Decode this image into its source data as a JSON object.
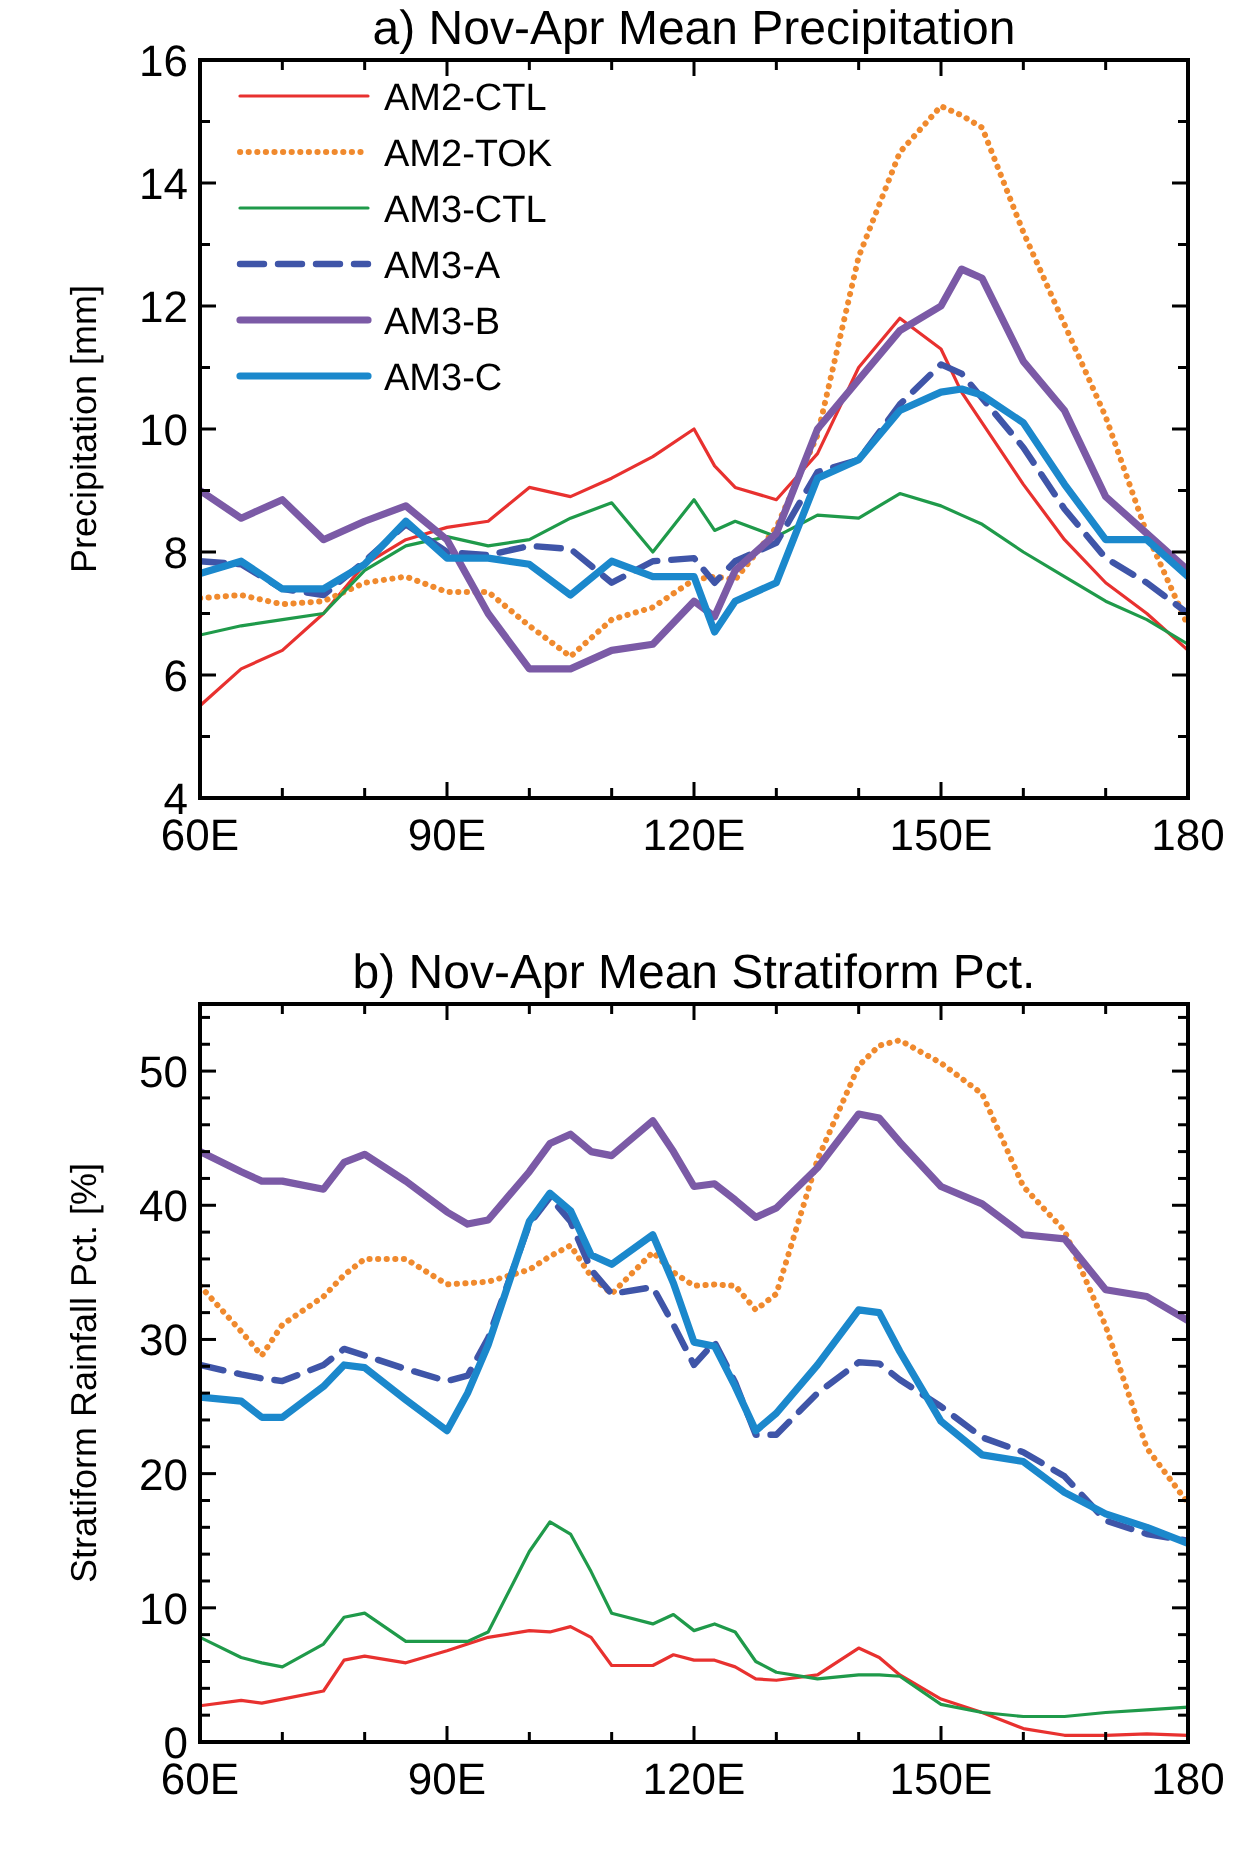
{
  "chart_data": [
    {
      "type": "line",
      "title": "a) Nov-Apr Mean Precipitation",
      "ylabel": "Precipitation [mm]",
      "x": [
        60,
        65,
        70,
        75,
        80,
        85,
        90,
        95,
        100,
        105,
        110,
        115,
        120,
        122.5,
        125,
        130,
        135,
        140,
        145,
        150,
        152.5,
        155,
        160,
        165,
        170,
        175,
        180
      ],
      "xlim": [
        60,
        180
      ],
      "xticks": [
        {
          "value": 60,
          "label": "60E"
        },
        {
          "value": 70,
          "label": null
        },
        {
          "value": 80,
          "label": null
        },
        {
          "value": 90,
          "label": "90E"
        },
        {
          "value": 100,
          "label": null
        },
        {
          "value": 110,
          "label": null
        },
        {
          "value": 120,
          "label": "120E"
        },
        {
          "value": 130,
          "label": null
        },
        {
          "value": 140,
          "label": null
        },
        {
          "value": 150,
          "label": "150E"
        },
        {
          "value": 160,
          "label": null
        },
        {
          "value": 170,
          "label": null
        },
        {
          "value": 180,
          "label": "180"
        }
      ],
      "ylim": [
        4,
        16
      ],
      "yticks": [
        4,
        {
          "value": 5,
          "label": null
        },
        6,
        {
          "value": 7,
          "label": null
        },
        8,
        {
          "value": 9,
          "label": null
        },
        10,
        {
          "value": 11,
          "label": null
        },
        12,
        {
          "value": 13,
          "label": null
        },
        14,
        {
          "value": 15,
          "label": null
        },
        16
      ],
      "grid": false,
      "legend": "top left",
      "marker": "none",
      "series": [
        {
          "name": "AM2-CTL",
          "color": "#e8312f",
          "line_style": "solid",
          "values": [
            5.5,
            6.1,
            6.4,
            7.0,
            7.8,
            8.2,
            8.4,
            8.5,
            9.05,
            8.9,
            9.2,
            9.55,
            10.0,
            9.4,
            9.05,
            8.85,
            9.6,
            11.0,
            11.8,
            11.3,
            10.6,
            10.1,
            9.1,
            8.2,
            7.5,
            7.0,
            6.4
          ]
        },
        {
          "name": "AM2-TOK",
          "color": "#f08a2e",
          "line_style": "dotted",
          "values": [
            7.25,
            7.3,
            7.15,
            7.2,
            7.5,
            7.6,
            7.35,
            7.35,
            6.8,
            6.3,
            6.9,
            7.1,
            7.55,
            7.6,
            7.55,
            8.4,
            9.9,
            12.8,
            14.5,
            15.25,
            15.1,
            14.9,
            13.2,
            11.7,
            10.2,
            8.3,
            6.8
          ]
        },
        {
          "name": "AM3-CTL",
          "color": "#1f9a4a",
          "line_style": "solid",
          "values": [
            6.65,
            6.8,
            6.9,
            7.0,
            7.7,
            8.1,
            8.25,
            8.1,
            8.2,
            8.55,
            8.8,
            8.0,
            8.85,
            8.35,
            8.5,
            8.25,
            8.6,
            8.55,
            8.95,
            8.75,
            8.6,
            8.45,
            8.0,
            7.6,
            7.2,
            6.9,
            6.5
          ]
        },
        {
          "name": "AM3-A",
          "color": "#3f55a8",
          "line_style": "dashed",
          "values": [
            7.85,
            7.8,
            7.4,
            7.3,
            7.85,
            8.45,
            8.0,
            7.95,
            8.1,
            8.05,
            7.5,
            7.85,
            7.9,
            7.5,
            7.85,
            8.15,
            9.3,
            9.5,
            10.4,
            11.05,
            10.9,
            10.5,
            9.7,
            8.7,
            7.9,
            7.5,
            7.0
          ]
        },
        {
          "name": "AM3-B",
          "color": "#7b5aa6",
          "line_style": "solid",
          "values": [
            9.0,
            8.55,
            8.85,
            8.2,
            8.5,
            8.75,
            8.2,
            7.0,
            6.1,
            6.1,
            6.4,
            6.5,
            7.2,
            6.95,
            7.7,
            8.3,
            10.0,
            10.8,
            11.6,
            12.0,
            12.6,
            12.45,
            11.1,
            10.3,
            8.9,
            8.3,
            7.7
          ]
        },
        {
          "name": "AM3-C",
          "color": "#1b88cc",
          "line_style": "solid",
          "values": [
            7.65,
            7.85,
            7.4,
            7.4,
            7.8,
            8.5,
            7.9,
            7.9,
            7.8,
            7.3,
            7.85,
            7.6,
            7.6,
            6.7,
            7.2,
            7.5,
            9.2,
            9.5,
            10.3,
            10.6,
            10.65,
            10.55,
            10.1,
            9.1,
            8.2,
            8.2,
            7.6
          ]
        }
      ]
    },
    {
      "type": "line",
      "title": "b) Nov-Apr Mean Stratiform Pct.",
      "ylabel": "Stratiform Rainfall Pct. [%]",
      "x": [
        60,
        65,
        67.5,
        70,
        75,
        77.5,
        80,
        85,
        90,
        92.5,
        95,
        100,
        102.5,
        105,
        107.5,
        110,
        115,
        117.5,
        120,
        122.5,
        125,
        127.5,
        130,
        135,
        140,
        142.5,
        145,
        150,
        155,
        160,
        165,
        170,
        175,
        180
      ],
      "xlim": [
        60,
        180
      ],
      "xticks": [
        {
          "value": 60,
          "label": "60E"
        },
        {
          "value": 70,
          "label": null
        },
        {
          "value": 80,
          "label": null
        },
        {
          "value": 90,
          "label": "90E"
        },
        {
          "value": 100,
          "label": null
        },
        {
          "value": 110,
          "label": null
        },
        {
          "value": 120,
          "label": "120E"
        },
        {
          "value": 130,
          "label": null
        },
        {
          "value": 140,
          "label": null
        },
        {
          "value": 150,
          "label": "150E"
        },
        {
          "value": 160,
          "label": null
        },
        {
          "value": 170,
          "label": null
        },
        {
          "value": 180,
          "label": "180"
        }
      ],
      "ylim": [
        0,
        55
      ],
      "yticks": [
        0,
        {
          "value": 2,
          "label": null
        },
        {
          "value": 4,
          "label": null
        },
        {
          "value": 6,
          "label": null
        },
        {
          "value": 8,
          "label": null
        },
        10,
        {
          "value": 12,
          "label": null
        },
        {
          "value": 14,
          "label": null
        },
        {
          "value": 16,
          "label": null
        },
        {
          "value": 18,
          "label": null
        },
        20,
        {
          "value": 22,
          "label": null
        },
        {
          "value": 24,
          "label": null
        },
        {
          "value": 26,
          "label": null
        },
        {
          "value": 28,
          "label": null
        },
        30,
        {
          "value": 32,
          "label": null
        },
        {
          "value": 34,
          "label": null
        },
        {
          "value": 36,
          "label": null
        },
        {
          "value": 38,
          "label": null
        },
        40,
        {
          "value": 42,
          "label": null
        },
        {
          "value": 44,
          "label": null
        },
        {
          "value": 46,
          "label": null
        },
        {
          "value": 48,
          "label": null
        },
        50,
        {
          "value": 52,
          "label": null
        },
        {
          "value": 54,
          "label": null
        }
      ],
      "grid": false,
      "legend": false,
      "marker": "none",
      "series": [
        {
          "color": "#e8312f",
          "line_style": "solid",
          "values": [
            2.7,
            3.1,
            2.9,
            3.2,
            3.8,
            6.1,
            6.4,
            5.9,
            6.8,
            7.3,
            7.8,
            8.3,
            8.2,
            8.6,
            7.8,
            5.7,
            5.7,
            6.5,
            6.1,
            6.1,
            5.6,
            4.7,
            4.6,
            5.0,
            7.0,
            6.3,
            5.0,
            3.2,
            2.2,
            1.0,
            0.5,
            0.5,
            0.6,
            0.5
          ]
        },
        {
          "color": "#f08a2e",
          "line_style": "dotted",
          "values": [
            34.0,
            30.6,
            28.8,
            31.1,
            33.2,
            34.8,
            36.0,
            36.0,
            34.1,
            34.2,
            34.3,
            35.2,
            36.2,
            37.0,
            34.7,
            33.4,
            36.5,
            35.0,
            34.0,
            34.1,
            34.0,
            32.2,
            33.4,
            43.4,
            50.4,
            51.9,
            52.3,
            50.6,
            48.3,
            41.4,
            38.1,
            31.0,
            21.9,
            17.8
          ]
        },
        {
          "color": "#1f9a4a",
          "line_style": "solid",
          "values": [
            7.8,
            6.3,
            5.9,
            5.6,
            7.3,
            9.3,
            9.6,
            7.5,
            7.5,
            7.5,
            8.2,
            14.2,
            16.4,
            15.5,
            12.7,
            9.6,
            8.8,
            9.5,
            8.3,
            8.8,
            8.2,
            6.0,
            5.2,
            4.7,
            5.0,
            5.0,
            4.9,
            2.8,
            2.2,
            1.9,
            1.9,
            2.2,
            2.4,
            2.6
          ]
        },
        {
          "color": "#3f55a8",
          "line_style": "dashed",
          "values": [
            28.1,
            27.4,
            27.1,
            26.9,
            28.1,
            29.3,
            28.8,
            27.8,
            26.9,
            27.3,
            30.1,
            38.6,
            40.6,
            38.8,
            35.2,
            33.4,
            33.9,
            31.1,
            28.1,
            29.8,
            26.8,
            22.9,
            22.9,
            26.0,
            28.3,
            28.2,
            27.0,
            25.0,
            22.7,
            21.6,
            19.8,
            16.5,
            15.5,
            15.0
          ]
        },
        {
          "color": "#7b5aa6",
          "line_style": "solid",
          "values": [
            44.0,
            42.5,
            41.8,
            41.8,
            41.2,
            43.2,
            43.8,
            41.8,
            39.5,
            38.6,
            38.9,
            42.5,
            44.6,
            45.3,
            44.0,
            43.7,
            46.3,
            44.0,
            41.4,
            41.6,
            40.4,
            39.1,
            39.8,
            42.8,
            46.8,
            46.5,
            44.7,
            41.4,
            40.1,
            37.8,
            37.5,
            33.7,
            33.2,
            31.4
          ]
        },
        {
          "color": "#1b88cc",
          "line_style": "solid",
          "values": [
            25.7,
            25.4,
            24.2,
            24.2,
            26.5,
            28.1,
            27.9,
            25.5,
            23.2,
            26.0,
            29.6,
            38.8,
            40.9,
            39.6,
            36.3,
            35.6,
            37.8,
            34.2,
            29.8,
            29.5,
            26.5,
            23.2,
            24.5,
            28.1,
            32.2,
            32.0,
            29.1,
            23.9,
            21.4,
            20.9,
            18.6,
            17.0,
            16.0,
            14.8
          ]
        }
      ]
    }
  ]
}
